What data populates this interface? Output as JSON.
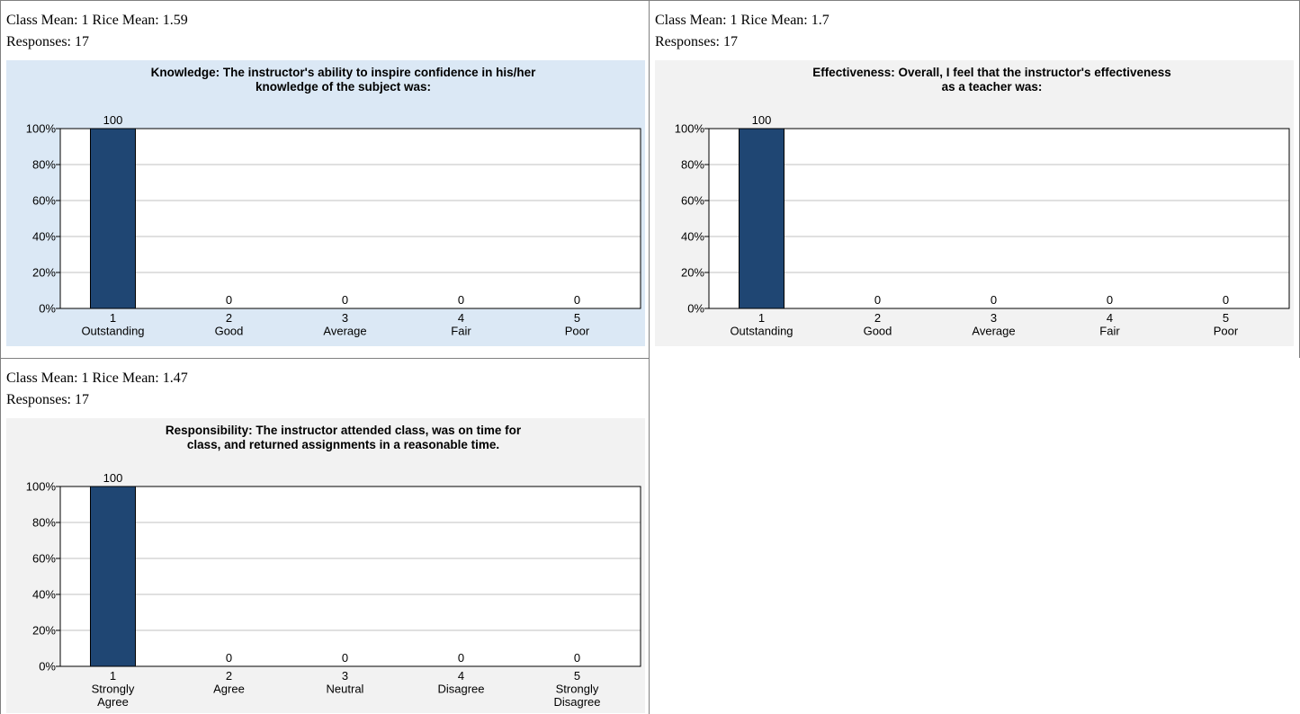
{
  "colors": {
    "bar": "#1f4673",
    "chart_bg_selected": "#dbe8f5",
    "chart_bg": "#f2f2f2",
    "grid": "#c0c0c0"
  },
  "cards": [
    {
      "class_mean_line": "Class Mean: 1 Rice Mean: 1.59",
      "responses_line": "Responses: 17",
      "selected": true
    },
    {
      "class_mean_line": "Class Mean: 1 Rice Mean: 1.7",
      "responses_line": "Responses: 17",
      "selected": false
    },
    {
      "class_mean_line": "Class Mean: 1 Rice Mean: 1.47",
      "responses_line": "Responses: 17",
      "selected": false
    }
  ],
  "chart_data": [
    {
      "type": "bar",
      "title_lines": [
        "Knowledge: The instructor's ability to inspire confidence in his/her",
        "knowledge of the subject was:"
      ],
      "categories": [
        [
          "1",
          "Outstanding"
        ],
        [
          "2",
          "Good"
        ],
        [
          "3",
          "Average"
        ],
        [
          "4",
          "Fair"
        ],
        [
          "5",
          "Poor"
        ]
      ],
      "values": [
        100,
        0,
        0,
        0,
        0
      ],
      "y_ticks": [
        "0%",
        "20%",
        "40%",
        "60%",
        "80%",
        "100%"
      ],
      "ylim": [
        0,
        100
      ],
      "grid": true
    },
    {
      "type": "bar",
      "title_lines": [
        "Effectiveness: Overall, I feel that the instructor's effectiveness",
        "as a teacher was:"
      ],
      "categories": [
        [
          "1",
          "Outstanding"
        ],
        [
          "2",
          "Good"
        ],
        [
          "3",
          "Average"
        ],
        [
          "4",
          "Fair"
        ],
        [
          "5",
          "Poor"
        ]
      ],
      "values": [
        100,
        0,
        0,
        0,
        0
      ],
      "y_ticks": [
        "0%",
        "20%",
        "40%",
        "60%",
        "80%",
        "100%"
      ],
      "ylim": [
        0,
        100
      ],
      "grid": true
    },
    {
      "type": "bar",
      "title_lines": [
        "Responsibility: The instructor attended class, was on time for",
        "class, and returned assignments in a reasonable time."
      ],
      "categories": [
        [
          "1",
          "Strongly",
          "Agree"
        ],
        [
          "2",
          "Agree"
        ],
        [
          "3",
          "Neutral"
        ],
        [
          "4",
          "Disagree"
        ],
        [
          "5",
          "Strongly",
          "Disagree"
        ]
      ],
      "values": [
        100,
        0,
        0,
        0,
        0
      ],
      "y_ticks": [
        "0%",
        "20%",
        "40%",
        "60%",
        "80%",
        "100%"
      ],
      "ylim": [
        0,
        100
      ],
      "grid": true
    }
  ]
}
